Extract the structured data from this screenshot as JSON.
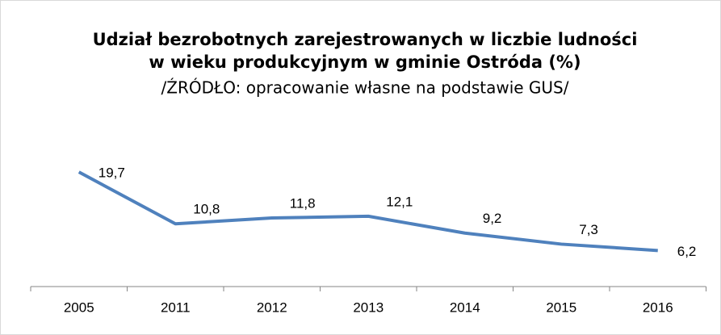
{
  "chart_data": {
    "type": "line",
    "title": [
      "Udział bezrobotnych zarejestrowanych w liczbie ludności",
      "w wieku produkcyjnym w gminie Ostróda (%)"
    ],
    "subtitle": "/ŹRÓDŁO: opracowanie własne na podstawie GUS/",
    "categories": [
      "2005",
      "2011",
      "2012",
      "2013",
      "2014",
      "2015",
      "2016"
    ],
    "series": [
      {
        "color": "#4f81bd",
        "values": [
          19.7,
          10.8,
          11.8,
          12.1,
          9.2,
          7.3,
          6.2
        ],
        "value_labels": [
          "19,7",
          "10,8",
          "11,8",
          "12,1",
          "9,2",
          "7,3",
          "6,2"
        ]
      }
    ],
    "ylim": [
      0,
      25
    ]
  }
}
